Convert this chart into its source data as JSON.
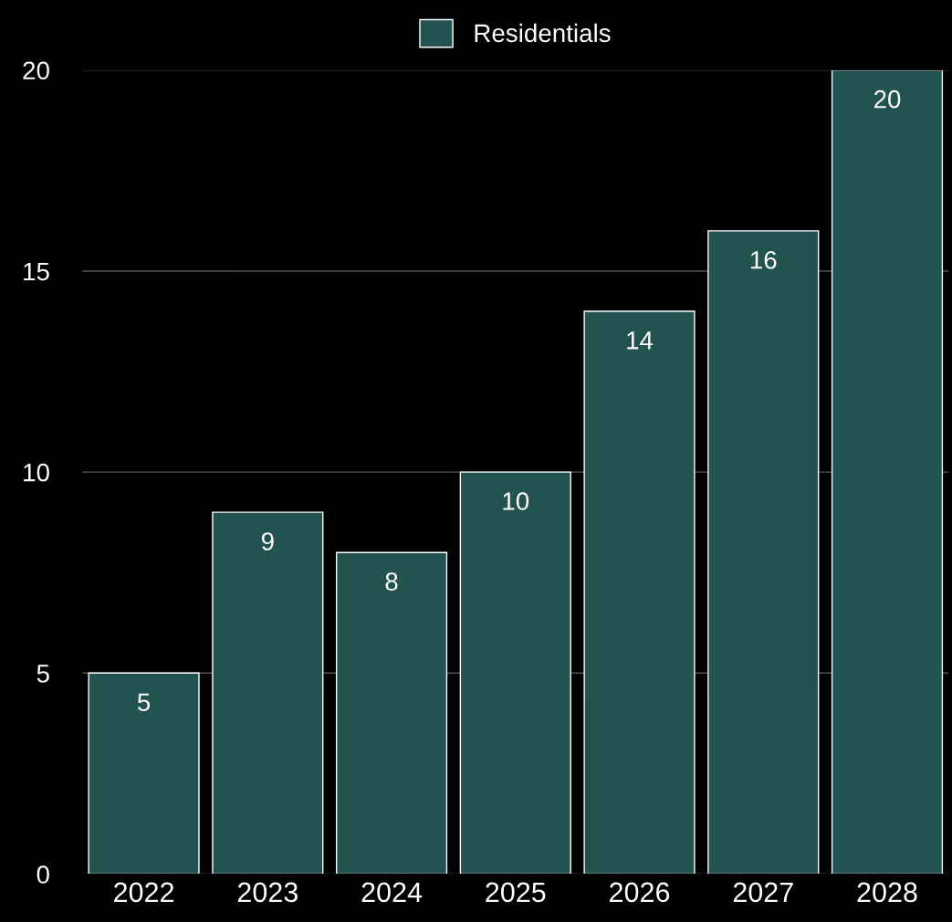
{
  "chart_data": {
    "type": "bar",
    "categories": [
      "2022",
      "2023",
      "2024",
      "2025",
      "2026",
      "2027",
      "2028"
    ],
    "series": [
      {
        "name": "Residentials",
        "color": "#235350",
        "values": [
          5,
          9,
          8,
          10,
          14,
          16,
          20
        ]
      }
    ],
    "ylim": [
      0,
      20
    ],
    "yticks": [
      0,
      5,
      10,
      15,
      20
    ],
    "grid": "y",
    "legend": "top",
    "data_labels": true
  }
}
